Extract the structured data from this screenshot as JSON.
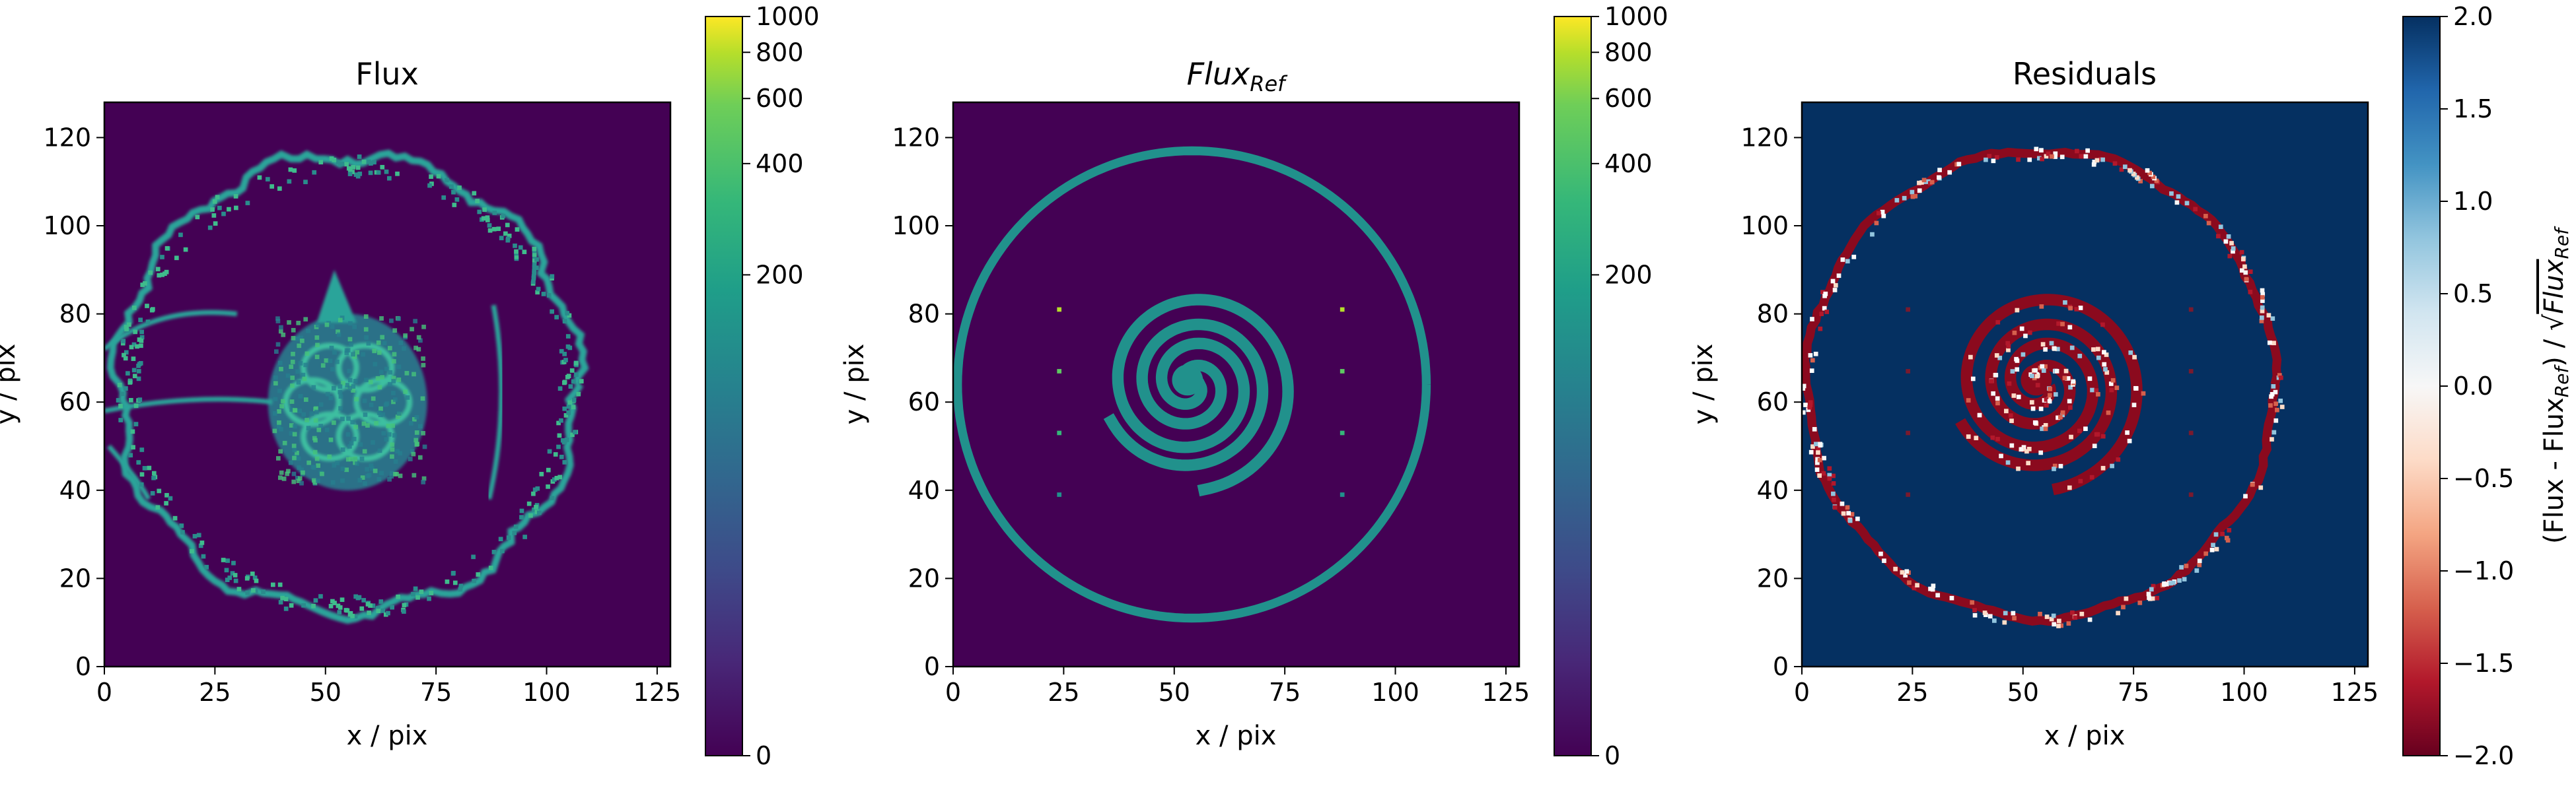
{
  "chart_data": [
    {
      "type": "heatmap",
      "title": "Flux",
      "xlabel": "x / pix",
      "ylabel": "y / pix",
      "xlim": [
        0,
        128
      ],
      "ylim": [
        0,
        128
      ],
      "x_ticks": [
        0,
        25,
        50,
        75,
        100,
        125
      ],
      "y_ticks": [
        0,
        20,
        40,
        60,
        80,
        100,
        120
      ],
      "colormap": "viridis",
      "colorbar": {
        "scale": "symlog",
        "range": [
          0,
          1000
        ],
        "ticks": [
          0,
          200,
          400,
          600,
          800,
          1000
        ],
        "label": ""
      },
      "background_color": "#440154",
      "feature_color": "#2aa49a",
      "features": {
        "ring": {
          "cx": 55,
          "cy": 64,
          "r": 52,
          "value": 90
        },
        "core": {
          "cx": 55,
          "cy": 60,
          "rx": 18,
          "ry": 20,
          "value": 110
        },
        "left_streaks": {
          "value": 80
        },
        "side_arcs": {
          "value": 80
        }
      }
    },
    {
      "type": "heatmap",
      "title": "Flux",
      "title_subscript": "Ref",
      "xlabel": "x / pix",
      "ylabel": "y / pix",
      "xlim": [
        0,
        128
      ],
      "ylim": [
        0,
        128
      ],
      "x_ticks": [
        0,
        25,
        50,
        75,
        100,
        125
      ],
      "y_ticks": [
        0,
        20,
        40,
        60,
        80,
        100,
        120
      ],
      "colormap": "viridis",
      "colorbar": {
        "scale": "symlog",
        "range": [
          0,
          1000
        ],
        "ticks": [
          0,
          200,
          400,
          600,
          800,
          1000
        ],
        "label": ""
      },
      "background_color": "#440154",
      "feature_color": "#21918c",
      "point_sources": [
        {
          "x": 24,
          "y": 81,
          "color": "#b5de2b"
        },
        {
          "x": 24,
          "y": 67,
          "color": "#5ec962"
        },
        {
          "x": 24,
          "y": 53,
          "color": "#35b779"
        },
        {
          "x": 24,
          "y": 39,
          "color": "#21918c"
        },
        {
          "x": 88,
          "y": 81,
          "color": "#b5de2b"
        },
        {
          "x": 88,
          "y": 67,
          "color": "#5ec962"
        },
        {
          "x": 88,
          "y": 53,
          "color": "#35b779"
        },
        {
          "x": 88,
          "y": 39,
          "color": "#21918c"
        }
      ],
      "features": {
        "ring": {
          "cx": 54,
          "cy": 64,
          "r": 53
        },
        "spiral": {
          "cx": 54,
          "cy": 64,
          "r_max": 22,
          "turns": 2.2
        }
      }
    },
    {
      "type": "heatmap",
      "title": "Residuals",
      "xlabel": "x / pix",
      "ylabel": "y / pix",
      "xlim": [
        0,
        128
      ],
      "ylim": [
        0,
        128
      ],
      "x_ticks": [
        0,
        25,
        50,
        75,
        100,
        125
      ],
      "y_ticks": [
        0,
        20,
        40,
        60,
        80,
        100,
        120
      ],
      "colormap": "RdBu",
      "colorbar": {
        "scale": "linear",
        "range": [
          -2.0,
          2.0
        ],
        "ticks": [
          "2.0",
          "1.5",
          "1.0",
          "0.5",
          "0.0",
          "−0.5",
          "−1.0",
          "−1.5",
          "−2.0"
        ],
        "tick_values": [
          2.0,
          1.5,
          1.0,
          0.5,
          0.0,
          -0.5,
          -1.0,
          -1.5,
          -2.0
        ],
        "label": "(Flux - Flux",
        "label_sub": "Ref",
        "label_mid": ") / √",
        "label_root": "Flux",
        "label_root_sub": "Ref"
      },
      "background_color": "#053061",
      "residual_color": "#8b0a1e"
    }
  ]
}
